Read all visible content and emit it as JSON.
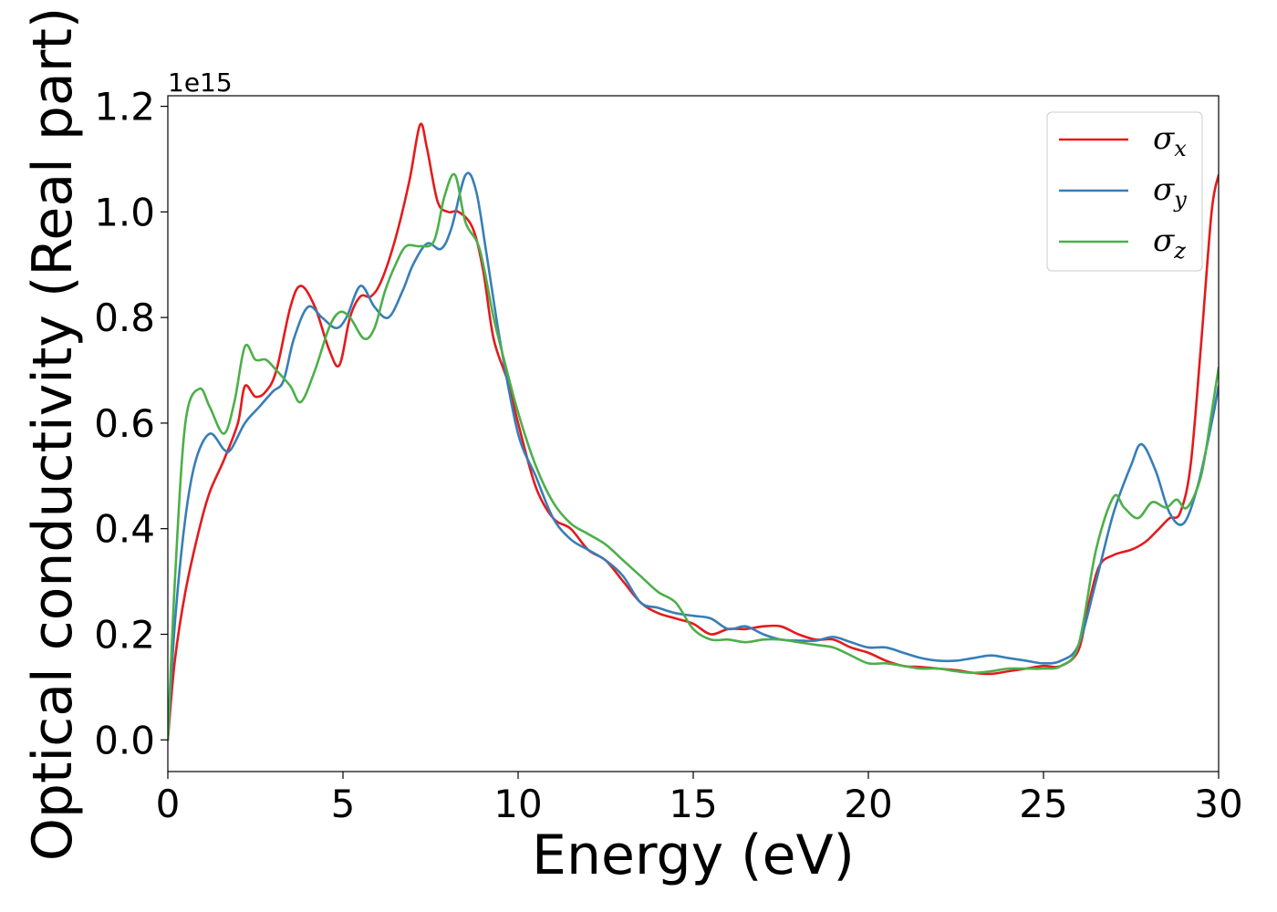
{
  "chart_data": {
    "type": "line",
    "xlabel": "Energy (eV)",
    "ylabel": "Optical conductivity (Real part)",
    "y_offset_label": "1e15",
    "y_multiplier": 1000000000000000.0,
    "xlim": [
      0,
      30
    ],
    "ylim": [
      -0.06,
      1.22
    ],
    "x_ticks": [
      "0",
      "5",
      "10",
      "15",
      "20",
      "25",
      "30"
    ],
    "y_ticks": [
      "0.0",
      "0.2",
      "0.4",
      "0.6",
      "0.8",
      "1.0",
      "1.2"
    ],
    "grid": false,
    "legend_position": "top-right",
    "series": [
      {
        "name": "σx",
        "legend_symbol": "σ",
        "legend_sub": "x",
        "color": "#e41a1c",
        "x": [
          0,
          0.2,
          0.5,
          0.9,
          1.2,
          1.6,
          2.0,
          2.2,
          2.5,
          2.8,
          3.1,
          3.5,
          3.8,
          4.2,
          4.6,
          4.9,
          5.2,
          5.5,
          5.8,
          6.1,
          6.5,
          6.9,
          7.2,
          7.4,
          7.7,
          8.0,
          8.3,
          8.7,
          9.0,
          9.3,
          9.7,
          10.0,
          10.5,
          11.0,
          11.5,
          12.0,
          12.5,
          13.0,
          13.5,
          14.0,
          14.5,
          15.0,
          15.5,
          16.0,
          16.5,
          17.0,
          17.5,
          18.0,
          18.5,
          19.0,
          19.5,
          20.0,
          20.5,
          21.0,
          21.5,
          22.0,
          22.5,
          23.0,
          23.5,
          24.0,
          24.5,
          25.0,
          25.5,
          26.0,
          26.3,
          26.6,
          27.0,
          27.5,
          27.8,
          28.0,
          28.3,
          28.6,
          28.9,
          29.2,
          29.5,
          29.8,
          30.0
        ],
        "values": [
          0.0,
          0.15,
          0.28,
          0.4,
          0.47,
          0.53,
          0.6,
          0.67,
          0.65,
          0.66,
          0.7,
          0.82,
          0.86,
          0.82,
          0.74,
          0.71,
          0.8,
          0.84,
          0.84,
          0.87,
          0.95,
          1.06,
          1.165,
          1.12,
          1.02,
          1.0,
          1.0,
          0.97,
          0.89,
          0.76,
          0.68,
          0.6,
          0.48,
          0.42,
          0.4,
          0.36,
          0.34,
          0.3,
          0.26,
          0.24,
          0.23,
          0.22,
          0.2,
          0.21,
          0.21,
          0.215,
          0.215,
          0.2,
          0.19,
          0.19,
          0.175,
          0.165,
          0.15,
          0.14,
          0.138,
          0.135,
          0.132,
          0.127,
          0.125,
          0.13,
          0.135,
          0.14,
          0.14,
          0.17,
          0.26,
          0.33,
          0.35,
          0.36,
          0.37,
          0.38,
          0.4,
          0.42,
          0.43,
          0.52,
          0.75,
          1.0,
          1.07
        ]
      },
      {
        "name": "σy",
        "legend_symbol": "σ",
        "legend_sub": "y",
        "color": "#377eb8",
        "x": [
          0,
          0.2,
          0.5,
          0.8,
          1.2,
          1.6,
          1.8,
          2.2,
          2.6,
          3.0,
          3.3,
          3.6,
          4.0,
          4.4,
          4.8,
          5.1,
          5.5,
          5.9,
          6.3,
          6.7,
          7.0,
          7.4,
          7.8,
          8.1,
          8.5,
          8.8,
          9.1,
          9.5,
          10.0,
          10.5,
          11.0,
          11.5,
          12.0,
          12.5,
          13.0,
          13.5,
          14.0,
          14.5,
          15.0,
          15.5,
          16.0,
          16.5,
          17.0,
          17.5,
          18.0,
          18.5,
          19.0,
          19.5,
          20.0,
          20.5,
          21.0,
          21.5,
          22.0,
          22.5,
          23.0,
          23.5,
          24.0,
          24.5,
          25.0,
          25.5,
          26.0,
          26.5,
          27.0,
          27.5,
          27.8,
          28.2,
          28.6,
          29.0,
          29.4,
          29.8,
          30.0
        ],
        "values": [
          0.0,
          0.22,
          0.42,
          0.53,
          0.58,
          0.55,
          0.55,
          0.6,
          0.63,
          0.66,
          0.68,
          0.76,
          0.82,
          0.8,
          0.78,
          0.8,
          0.86,
          0.82,
          0.8,
          0.85,
          0.9,
          0.94,
          0.93,
          0.97,
          1.07,
          1.04,
          0.92,
          0.75,
          0.58,
          0.5,
          0.42,
          0.38,
          0.36,
          0.34,
          0.31,
          0.26,
          0.25,
          0.24,
          0.235,
          0.23,
          0.21,
          0.215,
          0.2,
          0.19,
          0.188,
          0.188,
          0.195,
          0.185,
          0.175,
          0.175,
          0.165,
          0.155,
          0.15,
          0.15,
          0.155,
          0.16,
          0.155,
          0.15,
          0.145,
          0.15,
          0.18,
          0.3,
          0.43,
          0.52,
          0.56,
          0.51,
          0.43,
          0.41,
          0.48,
          0.6,
          0.67
        ]
      },
      {
        "name": "σz",
        "legend_symbol": "σ",
        "legend_sub": "z",
        "color": "#4daf4a",
        "x": [
          0,
          0.2,
          0.5,
          0.9,
          1.2,
          1.6,
          1.9,
          2.2,
          2.5,
          2.8,
          3.1,
          3.5,
          3.8,
          4.2,
          4.6,
          4.9,
          5.2,
          5.6,
          5.9,
          6.2,
          6.5,
          6.8,
          7.2,
          7.6,
          7.9,
          8.2,
          8.5,
          8.9,
          9.3,
          9.6,
          10.0,
          10.5,
          11.0,
          11.5,
          12.0,
          12.5,
          13.0,
          13.5,
          14.0,
          14.5,
          15.0,
          15.5,
          16.0,
          16.5,
          17.0,
          17.5,
          18.0,
          18.5,
          19.0,
          19.5,
          20.0,
          20.5,
          21.0,
          21.5,
          22.0,
          22.5,
          23.0,
          23.5,
          24.0,
          24.5,
          25.0,
          25.5,
          26.0,
          26.5,
          27.0,
          27.3,
          27.7,
          28.1,
          28.5,
          28.8,
          29.1,
          29.5,
          29.8,
          30.0
        ],
        "values": [
          0.0,
          0.3,
          0.6,
          0.665,
          0.63,
          0.58,
          0.64,
          0.745,
          0.72,
          0.72,
          0.7,
          0.67,
          0.64,
          0.7,
          0.78,
          0.81,
          0.8,
          0.76,
          0.78,
          0.85,
          0.9,
          0.935,
          0.935,
          0.945,
          1.03,
          1.07,
          0.98,
          0.93,
          0.8,
          0.72,
          0.62,
          0.52,
          0.45,
          0.41,
          0.39,
          0.37,
          0.34,
          0.31,
          0.28,
          0.26,
          0.21,
          0.19,
          0.19,
          0.185,
          0.19,
          0.19,
          0.185,
          0.18,
          0.175,
          0.16,
          0.145,
          0.145,
          0.14,
          0.135,
          0.135,
          0.13,
          0.127,
          0.13,
          0.135,
          0.135,
          0.135,
          0.14,
          0.18,
          0.36,
          0.46,
          0.44,
          0.42,
          0.45,
          0.44,
          0.455,
          0.44,
          0.5,
          0.62,
          0.705
        ]
      }
    ]
  }
}
